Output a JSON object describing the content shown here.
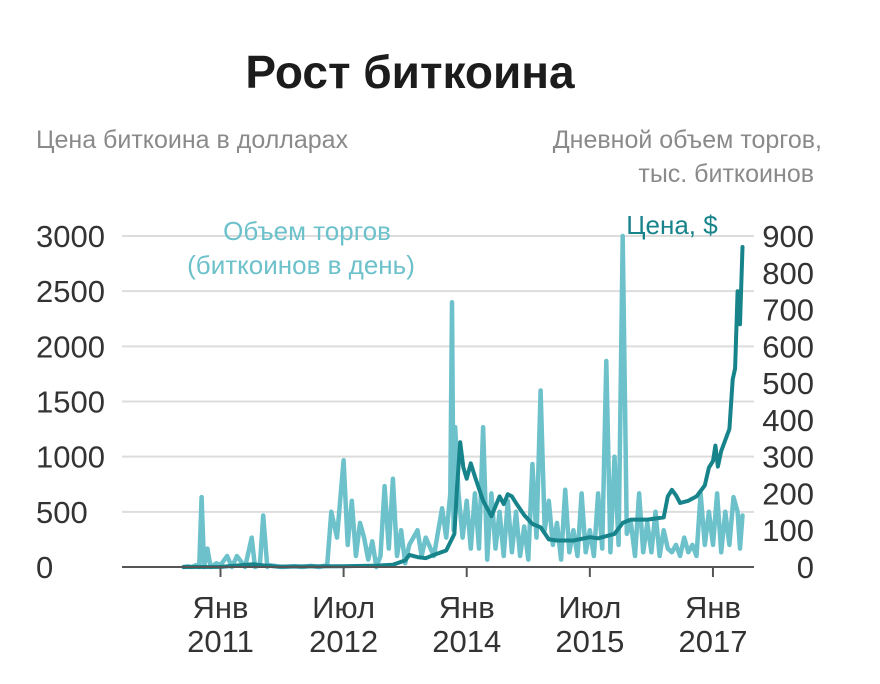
{
  "chart_data": {
    "type": "line",
    "title": "Рост биткоина",
    "left_axis_label": "Цена биткоина в долларах",
    "right_axis_label": [
      "Дневной объем торгов,",
      "тыс. биткоинов"
    ],
    "y_left": {
      "ticks": [
        0,
        500,
        1000,
        1500,
        2000,
        2500,
        3000
      ],
      "lim": [
        0,
        3000
      ]
    },
    "y_right": {
      "ticks": [
        0,
        100,
        200,
        300,
        400,
        500,
        600,
        700,
        800,
        900
      ],
      "lim": [
        0,
        900
      ]
    },
    "x_ticks": [
      {
        "x": 2011.0,
        "line1": "Янв",
        "line2": "2011"
      },
      {
        "x": 2012.5,
        "line1": "Июл",
        "line2": "2012"
      },
      {
        "x": 2014.0,
        "line1": "Янв",
        "line2": "2014"
      },
      {
        "x": 2015.5,
        "line1": "Июл",
        "line2": "2015"
      },
      {
        "x": 2017.0,
        "line1": "Янв",
        "line2": "2017"
      }
    ],
    "xlim": [
      2009.8,
      2017.5
    ],
    "grid": true,
    "annotations": {
      "volume": [
        "Объем торгов",
        "(биткоинов в день)"
      ],
      "price": "Цена, $"
    },
    "colors": {
      "price": "#17838a",
      "volume": "#6cc1cb",
      "grid": "#dddddd",
      "axis": "#555555"
    },
    "series": [
      {
        "name": "Цена, $",
        "axis": "left",
        "points": [
          [
            2010.55,
            0
          ],
          [
            2011.0,
            1
          ],
          [
            2011.4,
            25
          ],
          [
            2011.5,
            15
          ],
          [
            2011.7,
            4
          ],
          [
            2012.0,
            5
          ],
          [
            2012.5,
            7
          ],
          [
            2012.9,
            13
          ],
          [
            2013.1,
            20
          ],
          [
            2013.25,
            60
          ],
          [
            2013.3,
            110
          ],
          [
            2013.4,
            90
          ],
          [
            2013.5,
            80
          ],
          [
            2013.6,
            110
          ],
          [
            2013.75,
            150
          ],
          [
            2013.85,
            300
          ],
          [
            2013.88,
            700
          ],
          [
            2013.92,
            1130
          ],
          [
            2013.96,
            900
          ],
          [
            2014.0,
            800
          ],
          [
            2014.05,
            940
          ],
          [
            2014.1,
            820
          ],
          [
            2014.2,
            600
          ],
          [
            2014.3,
            460
          ],
          [
            2014.4,
            640
          ],
          [
            2014.45,
            570
          ],
          [
            2014.5,
            660
          ],
          [
            2014.55,
            640
          ],
          [
            2014.6,
            580
          ],
          [
            2014.7,
            470
          ],
          [
            2014.8,
            390
          ],
          [
            2014.9,
            360
          ],
          [
            2015.0,
            250
          ],
          [
            2015.1,
            240
          ],
          [
            2015.3,
            240
          ],
          [
            2015.5,
            270
          ],
          [
            2015.6,
            260
          ],
          [
            2015.8,
            300
          ],
          [
            2015.9,
            400
          ],
          [
            2016.0,
            430
          ],
          [
            2016.2,
            430
          ],
          [
            2016.4,
            450
          ],
          [
            2016.45,
            640
          ],
          [
            2016.5,
            700
          ],
          [
            2016.55,
            650
          ],
          [
            2016.6,
            580
          ],
          [
            2016.7,
            600
          ],
          [
            2016.8,
            640
          ],
          [
            2016.9,
            740
          ],
          [
            2016.95,
            900
          ],
          [
            2017.0,
            960
          ],
          [
            2017.03,
            1100
          ],
          [
            2017.06,
            910
          ],
          [
            2017.1,
            1050
          ],
          [
            2017.15,
            1150
          ],
          [
            2017.2,
            1250
          ],
          [
            2017.24,
            1700
          ],
          [
            2017.27,
            1800
          ],
          [
            2017.3,
            2500
          ],
          [
            2017.33,
            2200
          ],
          [
            2017.36,
            2900
          ]
        ]
      },
      {
        "name": "Объем торгов (биткоинов в день)",
        "axis": "right",
        "points": [
          [
            2010.55,
            0
          ],
          [
            2010.6,
            2
          ],
          [
            2010.65,
            0
          ],
          [
            2010.7,
            5
          ],
          [
            2010.74,
            0
          ],
          [
            2010.77,
            190
          ],
          [
            2010.8,
            0
          ],
          [
            2010.84,
            50
          ],
          [
            2010.88,
            0
          ],
          [
            2010.95,
            10
          ],
          [
            2011.0,
            5
          ],
          [
            2011.08,
            30
          ],
          [
            2011.14,
            0
          ],
          [
            2011.2,
            30
          ],
          [
            2011.3,
            0
          ],
          [
            2011.38,
            80
          ],
          [
            2011.42,
            0
          ],
          [
            2011.48,
            5
          ],
          [
            2011.52,
            140
          ],
          [
            2011.57,
            0
          ],
          [
            2011.6,
            5
          ],
          [
            2011.75,
            0
          ],
          [
            2011.9,
            2
          ],
          [
            2012.0,
            0
          ],
          [
            2012.1,
            3
          ],
          [
            2012.2,
            0
          ],
          [
            2012.3,
            5
          ],
          [
            2012.35,
            150
          ],
          [
            2012.42,
            80
          ],
          [
            2012.5,
            290
          ],
          [
            2012.55,
            60
          ],
          [
            2012.6,
            180
          ],
          [
            2012.65,
            30
          ],
          [
            2012.7,
            120
          ],
          [
            2012.75,
            80
          ],
          [
            2012.8,
            20
          ],
          [
            2012.85,
            70
          ],
          [
            2012.9,
            0
          ],
          [
            2012.95,
            30
          ],
          [
            2013.0,
            220
          ],
          [
            2013.05,
            50
          ],
          [
            2013.1,
            240
          ],
          [
            2013.15,
            30
          ],
          [
            2013.2,
            100
          ],
          [
            2013.25,
            10
          ],
          [
            2013.3,
            60
          ],
          [
            2013.4,
            100
          ],
          [
            2013.45,
            30
          ],
          [
            2013.5,
            80
          ],
          [
            2013.6,
            30
          ],
          [
            2013.7,
            160
          ],
          [
            2013.75,
            80
          ],
          [
            2013.8,
            200
          ],
          [
            2013.82,
            720
          ],
          [
            2013.84,
            100
          ],
          [
            2013.86,
            380
          ],
          [
            2013.9,
            200
          ],
          [
            2013.95,
            80
          ],
          [
            2014.0,
            180
          ],
          [
            2014.05,
            50
          ],
          [
            2014.1,
            200
          ],
          [
            2014.15,
            50
          ],
          [
            2014.2,
            380
          ],
          [
            2014.25,
            20
          ],
          [
            2014.3,
            200
          ],
          [
            2014.35,
            50
          ],
          [
            2014.4,
            150
          ],
          [
            2014.45,
            30
          ],
          [
            2014.5,
            180
          ],
          [
            2014.55,
            40
          ],
          [
            2014.6,
            150
          ],
          [
            2014.65,
            30
          ],
          [
            2014.7,
            110
          ],
          [
            2014.75,
            20
          ],
          [
            2014.8,
            280
          ],
          [
            2014.85,
            80
          ],
          [
            2014.9,
            480
          ],
          [
            2014.95,
            100
          ],
          [
            2015.0,
            180
          ],
          [
            2015.05,
            60
          ],
          [
            2015.1,
            120
          ],
          [
            2015.15,
            20
          ],
          [
            2015.2,
            210
          ],
          [
            2015.25,
            40
          ],
          [
            2015.3,
            100
          ],
          [
            2015.35,
            30
          ],
          [
            2015.4,
            200
          ],
          [
            2015.45,
            40
          ],
          [
            2015.5,
            100
          ],
          [
            2015.55,
            30
          ],
          [
            2015.6,
            200
          ],
          [
            2015.65,
            50
          ],
          [
            2015.7,
            560
          ],
          [
            2015.75,
            40
          ],
          [
            2015.8,
            300
          ],
          [
            2015.85,
            60
          ],
          [
            2015.9,
            900
          ],
          [
            2015.95,
            90
          ],
          [
            2016.0,
            120
          ],
          [
            2016.05,
            30
          ],
          [
            2016.1,
            200
          ],
          [
            2016.15,
            40
          ],
          [
            2016.2,
            120
          ],
          [
            2016.25,
            40
          ],
          [
            2016.3,
            150
          ],
          [
            2016.35,
            30
          ],
          [
            2016.4,
            100
          ],
          [
            2016.45,
            50
          ],
          [
            2016.5,
            40
          ],
          [
            2016.55,
            60
          ],
          [
            2016.6,
            30
          ],
          [
            2016.65,
            80
          ],
          [
            2016.7,
            40
          ],
          [
            2016.75,
            60
          ],
          [
            2016.8,
            30
          ],
          [
            2016.85,
            200
          ],
          [
            2016.9,
            60
          ],
          [
            2016.95,
            150
          ],
          [
            2017.0,
            60
          ],
          [
            2017.05,
            200
          ],
          [
            2017.1,
            40
          ],
          [
            2017.15,
            150
          ],
          [
            2017.2,
            60
          ],
          [
            2017.25,
            190
          ],
          [
            2017.3,
            150
          ],
          [
            2017.33,
            50
          ],
          [
            2017.36,
            140
          ]
        ]
      }
    ]
  }
}
